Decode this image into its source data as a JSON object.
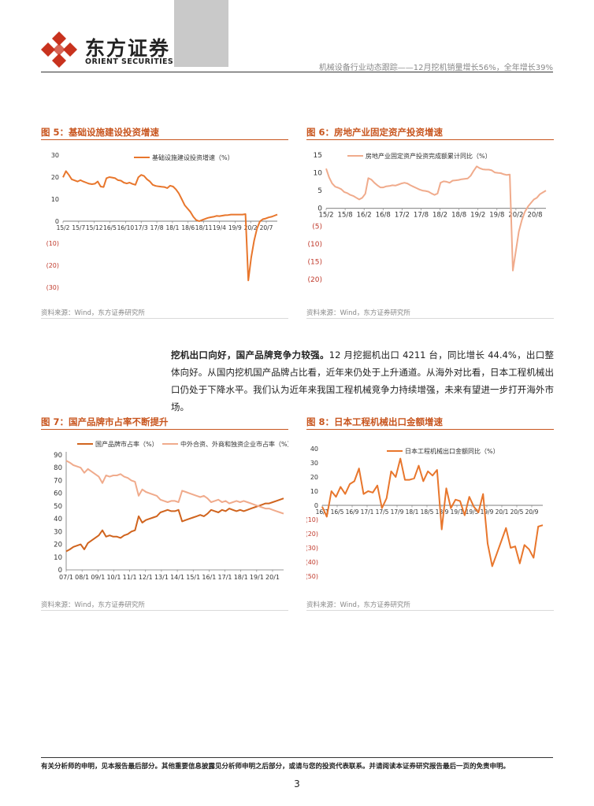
{
  "header": {
    "brand_cn": "东方证券",
    "brand_en": "ORIENT SECURITIES",
    "report_title": "机械设备行业动态跟踪——12月挖机销量增长56%，全年增长39%"
  },
  "figures": {
    "fig5": {
      "title": "图 5：基础设施建设投资增速",
      "source": "资料来源：Wind，东方证券研究所"
    },
    "fig6": {
      "title": "图 6：房地产业固定资产投资增速",
      "source": "资料来源：Wind，东方证券研究所"
    },
    "fig7": {
      "title": "图 7：国产品牌市占率不断提升",
      "source": "资料来源：Wind，东方证券研究所"
    },
    "fig8": {
      "title": "图 8：日本工程机械出口金额增速",
      "source": "资料来源：Wind，东方证券研究所"
    }
  },
  "body": {
    "lead": "挖机出口向好，国产品牌竞争力较强。",
    "text": "12 月挖掘机出口 4211 台，同比增长 44.4%，出口整体向好。从国内挖机国产品牌占比看，近年来仍处于上升通道。从海外对比看，日本工程机械出口仍处于下降水平。我们认为近年来我国工程机械竞争力持续增强，未来有望进一步打开海外市场。"
  },
  "footer": {
    "disclaimer": "有关分析师的申明，见本报告最后部分。其他重要信息披露见分析师申明之后部分，或请与您的投资代表联系。并请阅读本证券研究报告最后一页的免责申明。",
    "page_number": "3"
  },
  "colors": {
    "accent": "#c8551e",
    "orange": "#e8762c",
    "light_orange": "#f0ab8c",
    "dark_orange": "#d0641e"
  },
  "chart_data": [
    {
      "id": "fig5",
      "type": "line",
      "title": "图 5：基础设施建设投资增速",
      "legend": [
        "基础设施建设投资增速（%）"
      ],
      "yticks": [
        "30",
        "20",
        "10",
        "0",
        "(10)",
        "(20)",
        "(30)"
      ],
      "ylim": [
        -30,
        30
      ],
      "xticks": [
        "15/2",
        "15/7",
        "15/12",
        "16/5",
        "16/10",
        "17/3",
        "17/8",
        "18/1",
        "18/6",
        "18/11",
        "19/4",
        "19/9",
        "20/2",
        "20/7"
      ],
      "series": [
        {
          "name": "基础设施建设投资增速（%）",
          "values": [
            19.9,
            22.7,
            21.0,
            19.0,
            18.5,
            18.0,
            18.6,
            18.0,
            17.5,
            17.0,
            16.8,
            17.0,
            18.0,
            15.7,
            15.5,
            19.5,
            20.0,
            19.8,
            19.5,
            18.6,
            18.4,
            17.5,
            17.1,
            17.5,
            16.9,
            16.5,
            19.9,
            21.0,
            20.5,
            19.0,
            18.0,
            16.5,
            16.0,
            15.8,
            15.6,
            15.5,
            15.0,
            16.1,
            15.7,
            14.4,
            12.6,
            10.0,
            7.3,
            5.7,
            4.2,
            2.0,
            0.5,
            0.0,
            0.5,
            1.0,
            1.5,
            1.8,
            2.0,
            2.4,
            2.3,
            2.5,
            2.7,
            2.8,
            3.0,
            3.0,
            3.0,
            3.0,
            3.0,
            3.2,
            -26.9,
            -16.4,
            -8.8,
            -3.3,
            -0.1,
            0.9,
            1.2,
            1.7,
            2.0,
            2.5,
            3.0
          ]
        }
      ]
    },
    {
      "id": "fig6",
      "type": "line",
      "title": "图 6：房地产业固定资产投资增速",
      "legend": [
        "房地产业固定资产投资完成额累计同比（%）"
      ],
      "yticks": [
        "15",
        "10",
        "5",
        "0",
        "(5)",
        "(10)",
        "(15)",
        "(20)"
      ],
      "ylim": [
        -20,
        15
      ],
      "xticks": [
        "15/2",
        "15/8",
        "16/2",
        "16/8",
        "17/2",
        "17/8",
        "18/2",
        "18/8",
        "19/2",
        "19/8",
        "20/2",
        "20/8"
      ],
      "series": [
        {
          "name": "房地产业固定资产投资完成额累计同比（%）",
          "values": [
            11.2,
            8.7,
            7.0,
            6.1,
            5.8,
            5.4,
            4.6,
            4.3,
            3.8,
            3.5,
            3.0,
            2.5,
            3.0,
            4.1,
            8.5,
            8.1,
            7.2,
            6.5,
            5.9,
            5.9,
            6.2,
            6.3,
            6.5,
            6.4,
            6.7,
            7.0,
            7.2,
            7.0,
            6.5,
            6.1,
            5.7,
            5.3,
            5.0,
            4.9,
            4.7,
            4.2,
            3.8,
            4.2,
            7.2,
            7.6,
            7.5,
            7.2,
            7.8,
            7.9,
            8.0,
            8.2,
            8.3,
            8.4,
            9.2,
            10.6,
            11.8,
            11.3,
            11.0,
            10.9,
            10.9,
            10.7,
            10.1,
            10.0,
            9.9,
            9.6,
            9.4,
            9.5,
            -17.5,
            -12.0,
            -6.5,
            -3.3,
            -1.0,
            0.5,
            1.5,
            2.5,
            3.0,
            4.0,
            4.5,
            5.0
          ]
        }
      ]
    },
    {
      "id": "fig7",
      "type": "line",
      "title": "图 7：国产品牌市占率不断提升",
      "legend": [
        "国产品牌市占率（%）",
        "中外合资、外商和独资企业市占率（%）"
      ],
      "yticks": [
        "90",
        "80",
        "70",
        "60",
        "50",
        "40",
        "30",
        "20",
        "10",
        "0"
      ],
      "ylim": [
        0,
        90
      ],
      "xticks": [
        "07/1",
        "08/1",
        "09/1",
        "10/1",
        "11/1",
        "12/1",
        "13/1",
        "14/1",
        "15/1",
        "16/1",
        "17/1",
        "18/1",
        "19/1",
        "20/1"
      ],
      "series": [
        {
          "name": "国产品牌市占率（%）",
          "values": [
            14.5,
            16,
            18,
            19,
            20,
            16,
            21,
            23,
            25,
            27,
            31,
            26,
            27,
            26,
            26,
            25,
            27,
            28,
            30,
            31,
            42,
            37,
            39,
            40,
            41,
            42,
            45,
            46,
            47,
            46,
            46,
            47,
            38,
            39,
            40,
            41,
            42,
            43,
            42,
            44,
            47,
            46,
            45,
            47,
            46,
            48,
            47,
            46,
            47,
            46,
            47,
            48,
            49,
            50,
            51,
            52,
            52,
            53,
            54,
            55,
            56
          ]
        },
        {
          "name": "中外合资、外商和独资企业市占率（%）",
          "values": [
            85.5,
            84,
            82,
            81,
            80,
            76,
            79,
            77,
            75,
            73,
            68,
            74,
            73,
            74,
            74,
            75,
            73,
            72,
            70,
            69,
            58,
            63,
            61,
            60,
            59,
            58,
            55,
            54,
            53,
            54,
            54,
            53,
            62,
            61,
            60,
            59,
            58,
            57,
            58,
            56,
            53,
            54,
            55,
            53,
            54,
            52,
            53,
            54,
            53,
            54,
            53,
            52,
            51,
            50,
            49,
            48,
            48,
            47,
            46,
            45,
            44
          ]
        }
      ]
    },
    {
      "id": "fig8",
      "type": "line",
      "title": "图 8：日本工程机械出口金额增速",
      "legend": [
        "日本工程机械出口金额同比（%）"
      ],
      "yticks": [
        "40",
        "30",
        "20",
        "10",
        "0",
        "(10)",
        "(20)",
        "(30)",
        "(40)",
        "(50)"
      ],
      "ylim": [
        -50,
        40
      ],
      "xticks": [
        "16/1",
        "16/5",
        "16/9",
        "17/1",
        "17/5",
        "17/9",
        "18/1",
        "18/5",
        "18/9",
        "19/1",
        "19/5",
        "19/9",
        "20/1",
        "20/5",
        "20/9"
      ],
      "series": [
        {
          "name": "日本工程机械出口金额同比（%）",
          "values": [
            -1,
            -8,
            10,
            6,
            13,
            8,
            15,
            17,
            26,
            8,
            10,
            9,
            14,
            -2,
            5,
            24,
            20,
            33,
            18,
            18,
            19,
            28,
            17,
            24,
            21,
            25,
            -17,
            12,
            -2,
            4,
            3,
            -7,
            6,
            -1,
            -5,
            8,
            -27,
            -43,
            -34,
            -25,
            -16,
            -30,
            -29,
            -41,
            -28,
            -31,
            -37,
            -15,
            -14
          ]
        }
      ]
    }
  ]
}
